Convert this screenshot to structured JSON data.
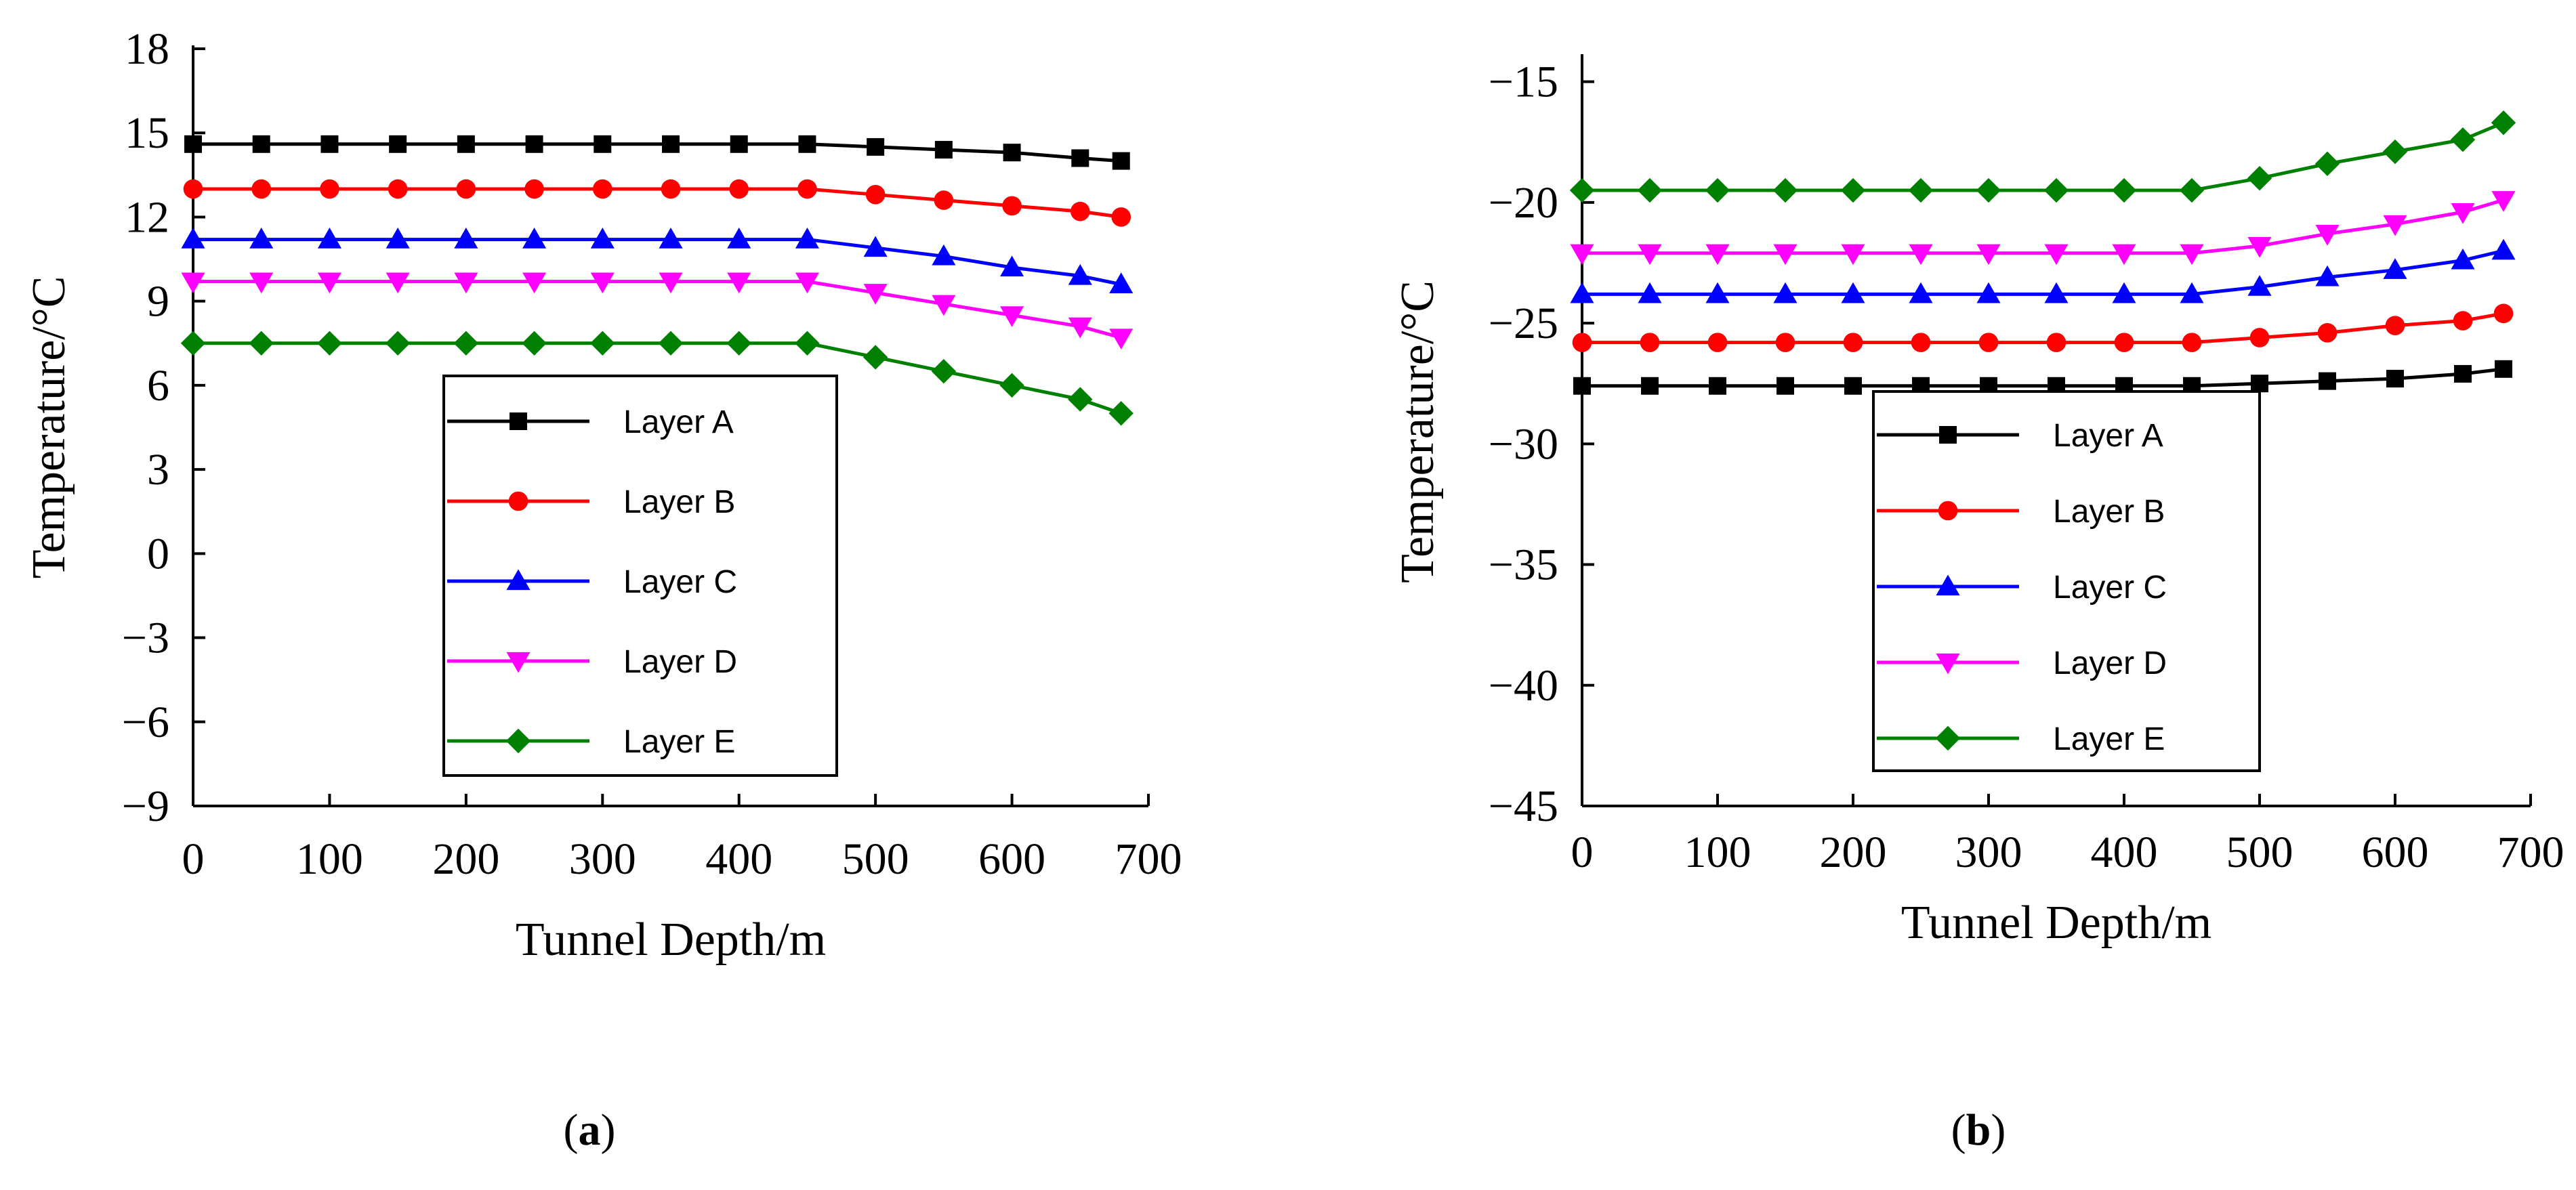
{
  "chart_data": [
    {
      "type": "line",
      "panel_label": "(a)",
      "xlabel": "Tunnel Depth/m",
      "ylabel": "Temperature/°C",
      "xlim": [
        0,
        700
      ],
      "ylim": [
        -9,
        18
      ],
      "xticks": [
        0,
        100,
        200,
        300,
        400,
        500,
        600,
        700
      ],
      "yticks": [
        -9,
        -6,
        -3,
        0,
        3,
        6,
        9,
        12,
        15,
        18
      ],
      "grid": false,
      "legend_position": "lower-center",
      "x": [
        0,
        50,
        100,
        150,
        200,
        250,
        300,
        350,
        400,
        450,
        500,
        550,
        600,
        650,
        680
      ],
      "series": [
        {
          "name": "Layer A",
          "color": "#000000",
          "marker": "square",
          "values": [
            14.6,
            14.6,
            14.6,
            14.6,
            14.6,
            14.6,
            14.6,
            14.6,
            14.6,
            14.6,
            14.5,
            14.4,
            14.3,
            14.1,
            14.0
          ]
        },
        {
          "name": "Layer B",
          "color": "#ff0000",
          "marker": "circle",
          "values": [
            13.0,
            13.0,
            13.0,
            13.0,
            13.0,
            13.0,
            13.0,
            13.0,
            13.0,
            13.0,
            12.8,
            12.6,
            12.4,
            12.2,
            12.0
          ]
        },
        {
          "name": "Layer C",
          "color": "#0000ff",
          "marker": "triangle-up",
          "values": [
            11.2,
            11.2,
            11.2,
            11.2,
            11.2,
            11.2,
            11.2,
            11.2,
            11.2,
            11.2,
            10.9,
            10.6,
            10.2,
            9.9,
            9.6
          ]
        },
        {
          "name": "Layer D",
          "color": "#ff00ff",
          "marker": "triangle-down",
          "values": [
            9.7,
            9.7,
            9.7,
            9.7,
            9.7,
            9.7,
            9.7,
            9.7,
            9.7,
            9.7,
            9.3,
            8.9,
            8.5,
            8.1,
            7.7
          ]
        },
        {
          "name": "Layer E",
          "color": "#008000",
          "marker": "diamond",
          "values": [
            7.5,
            7.5,
            7.5,
            7.5,
            7.5,
            7.5,
            7.5,
            7.5,
            7.5,
            7.5,
            7.0,
            6.5,
            6.0,
            5.5,
            5.0
          ]
        }
      ]
    },
    {
      "type": "line",
      "panel_label": "(b)",
      "xlabel": "Tunnel Depth/m",
      "ylabel": "Temperature/°C",
      "xlim": [
        0,
        700
      ],
      "ylim": [
        -45,
        -14
      ],
      "xticks": [
        0,
        100,
        200,
        300,
        400,
        500,
        600,
        700
      ],
      "yticks": [
        -45,
        -40,
        -35,
        -30,
        -25,
        -20,
        -15
      ],
      "grid": false,
      "legend_position": "lower-center",
      "x": [
        0,
        50,
        100,
        150,
        200,
        250,
        300,
        350,
        400,
        450,
        500,
        550,
        600,
        650,
        680
      ],
      "series": [
        {
          "name": "Layer A",
          "color": "#000000",
          "marker": "square",
          "values": [
            -27.6,
            -27.6,
            -27.6,
            -27.6,
            -27.6,
            -27.6,
            -27.6,
            -27.6,
            -27.6,
            -27.6,
            -27.5,
            -27.4,
            -27.3,
            -27.1,
            -26.9
          ]
        },
        {
          "name": "Layer B",
          "color": "#ff0000",
          "marker": "circle",
          "values": [
            -25.8,
            -25.8,
            -25.8,
            -25.8,
            -25.8,
            -25.8,
            -25.8,
            -25.8,
            -25.8,
            -25.8,
            -25.6,
            -25.4,
            -25.1,
            -24.9,
            -24.6
          ]
        },
        {
          "name": "Layer C",
          "color": "#0000ff",
          "marker": "triangle-up",
          "values": [
            -23.8,
            -23.8,
            -23.8,
            -23.8,
            -23.8,
            -23.8,
            -23.8,
            -23.8,
            -23.8,
            -23.8,
            -23.5,
            -23.1,
            -22.8,
            -22.4,
            -22.0
          ]
        },
        {
          "name": "Layer D",
          "color": "#ff00ff",
          "marker": "triangle-down",
          "values": [
            -22.1,
            -22.1,
            -22.1,
            -22.1,
            -22.1,
            -22.1,
            -22.1,
            -22.1,
            -22.1,
            -22.1,
            -21.8,
            -21.3,
            -20.9,
            -20.4,
            -19.9
          ]
        },
        {
          "name": "Layer E",
          "color": "#008000",
          "marker": "diamond",
          "values": [
            -19.5,
            -19.5,
            -19.5,
            -19.5,
            -19.5,
            -19.5,
            -19.5,
            -19.5,
            -19.5,
            -19.5,
            -19.0,
            -18.4,
            -17.9,
            -17.4,
            -16.7
          ]
        }
      ]
    }
  ]
}
